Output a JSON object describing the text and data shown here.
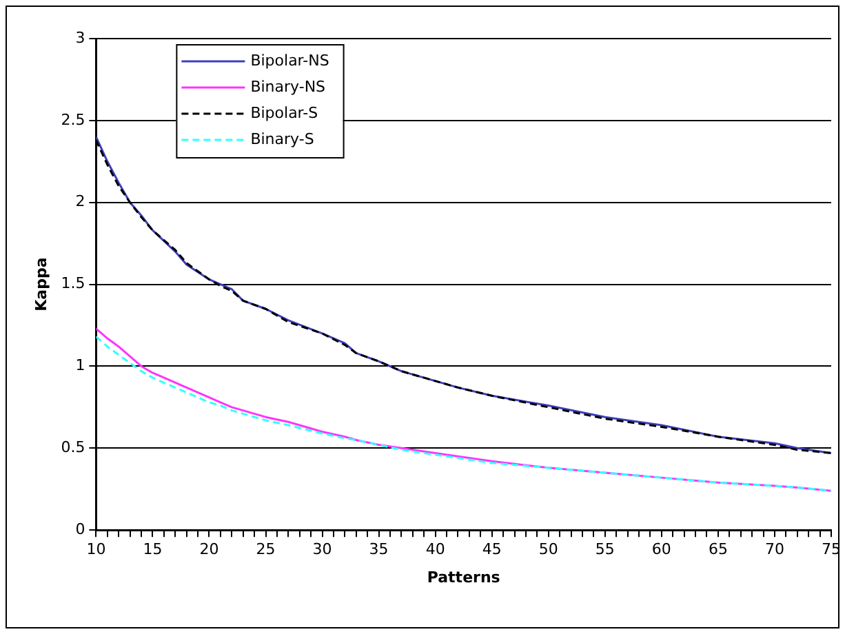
{
  "chart_data": {
    "type": "line",
    "xlabel": "Patterns",
    "ylabel": "Kappa",
    "xlim": [
      10,
      75
    ],
    "ylim": [
      0,
      3
    ],
    "xticks": [
      10,
      {
        "value": 11,
        "label": null
      },
      {
        "value": 12,
        "label": null
      },
      {
        "value": 13,
        "label": null
      },
      {
        "value": 14,
        "label": null
      },
      15,
      {
        "value": 16,
        "label": null
      },
      {
        "value": 17,
        "label": null
      },
      {
        "value": 18,
        "label": null
      },
      {
        "value": 19,
        "label": null
      },
      20,
      {
        "value": 21,
        "label": null
      },
      {
        "value": 22,
        "label": null
      },
      {
        "value": 23,
        "label": null
      },
      {
        "value": 24,
        "label": null
      },
      25,
      {
        "value": 26,
        "label": null
      },
      {
        "value": 27,
        "label": null
      },
      {
        "value": 28,
        "label": null
      },
      {
        "value": 29,
        "label": null
      },
      30,
      {
        "value": 31,
        "label": null
      },
      {
        "value": 32,
        "label": null
      },
      {
        "value": 33,
        "label": null
      },
      {
        "value": 34,
        "label": null
      },
      35,
      {
        "value": 36,
        "label": null
      },
      {
        "value": 37,
        "label": null
      },
      {
        "value": 38,
        "label": null
      },
      {
        "value": 39,
        "label": null
      },
      40,
      {
        "value": 41,
        "label": null
      },
      {
        "value": 42,
        "label": null
      },
      {
        "value": 43,
        "label": null
      },
      {
        "value": 44,
        "label": null
      },
      45,
      {
        "value": 46,
        "label": null
      },
      {
        "value": 47,
        "label": null
      },
      {
        "value": 48,
        "label": null
      },
      {
        "value": 49,
        "label": null
      },
      50,
      {
        "value": 51,
        "label": null
      },
      {
        "value": 52,
        "label": null
      },
      {
        "value": 53,
        "label": null
      },
      {
        "value": 54,
        "label": null
      },
      55,
      {
        "value": 56,
        "label": null
      },
      {
        "value": 57,
        "label": null
      },
      {
        "value": 58,
        "label": null
      },
      {
        "value": 59,
        "label": null
      },
      60,
      {
        "value": 61,
        "label": null
      },
      {
        "value": 62,
        "label": null
      },
      {
        "value": 63,
        "label": null
      },
      {
        "value": 64,
        "label": null
      },
      65,
      {
        "value": 66,
        "label": null
      },
      {
        "value": 67,
        "label": null
      },
      {
        "value": 68,
        "label": null
      },
      {
        "value": 69,
        "label": null
      },
      70,
      {
        "value": 71,
        "label": null
      },
      {
        "value": 72,
        "label": null
      },
      {
        "value": 73,
        "label": null
      },
      {
        "value": 74,
        "label": null
      },
      75
    ],
    "yticks": [
      0,
      0.5,
      1,
      1.5,
      2,
      2.5,
      3
    ],
    "grid": "y",
    "legend": "top left",
    "marker": "none",
    "x": [
      10,
      11,
      12,
      13,
      14,
      15,
      17,
      18,
      20,
      21,
      22,
      23,
      25,
      27,
      30,
      32,
      33,
      35,
      37,
      40,
      42,
      45,
      50,
      55,
      60,
      65,
      70,
      72,
      75
    ],
    "series": [
      {
        "name": "Bipolar-NS",
        "color": "#3f3fbf",
        "line_style": "solid",
        "values": [
          2.4,
          2.25,
          2.12,
          2.0,
          1.92,
          1.83,
          1.7,
          1.62,
          1.53,
          1.5,
          1.47,
          1.4,
          1.35,
          1.28,
          1.2,
          1.14,
          1.08,
          1.03,
          0.97,
          0.91,
          0.87,
          0.82,
          0.76,
          0.69,
          0.64,
          0.57,
          0.53,
          0.5,
          0.47
        ]
      },
      {
        "name": "Binary-NS",
        "color": "#ff33ff",
        "line_style": "solid",
        "values": [
          1.23,
          1.17,
          1.12,
          1.06,
          1.0,
          0.96,
          0.9,
          0.87,
          0.81,
          0.78,
          0.75,
          0.73,
          0.69,
          0.66,
          0.6,
          0.57,
          0.55,
          0.52,
          0.5,
          0.47,
          0.45,
          0.42,
          0.38,
          0.35,
          0.32,
          0.29,
          0.27,
          0.26,
          0.24
        ]
      },
      {
        "name": "Bipolar-S",
        "color": "#000000",
        "line_style": "dashed",
        "values": [
          2.38,
          2.23,
          2.1,
          2.0,
          1.91,
          1.83,
          1.71,
          1.63,
          1.53,
          1.49,
          1.46,
          1.4,
          1.35,
          1.27,
          1.2,
          1.13,
          1.08,
          1.03,
          0.97,
          0.91,
          0.87,
          0.82,
          0.75,
          0.68,
          0.63,
          0.57,
          0.52,
          0.49,
          0.47
        ]
      },
      {
        "name": "Binary-S",
        "color": "#33ffff",
        "line_style": "dashed",
        "values": [
          1.18,
          1.12,
          1.07,
          1.02,
          0.97,
          0.93,
          0.87,
          0.84,
          0.78,
          0.76,
          0.73,
          0.71,
          0.67,
          0.64,
          0.59,
          0.56,
          0.55,
          0.52,
          0.49,
          0.46,
          0.44,
          0.41,
          0.38,
          0.35,
          0.32,
          0.29,
          0.27,
          0.26,
          0.24
        ]
      }
    ]
  }
}
